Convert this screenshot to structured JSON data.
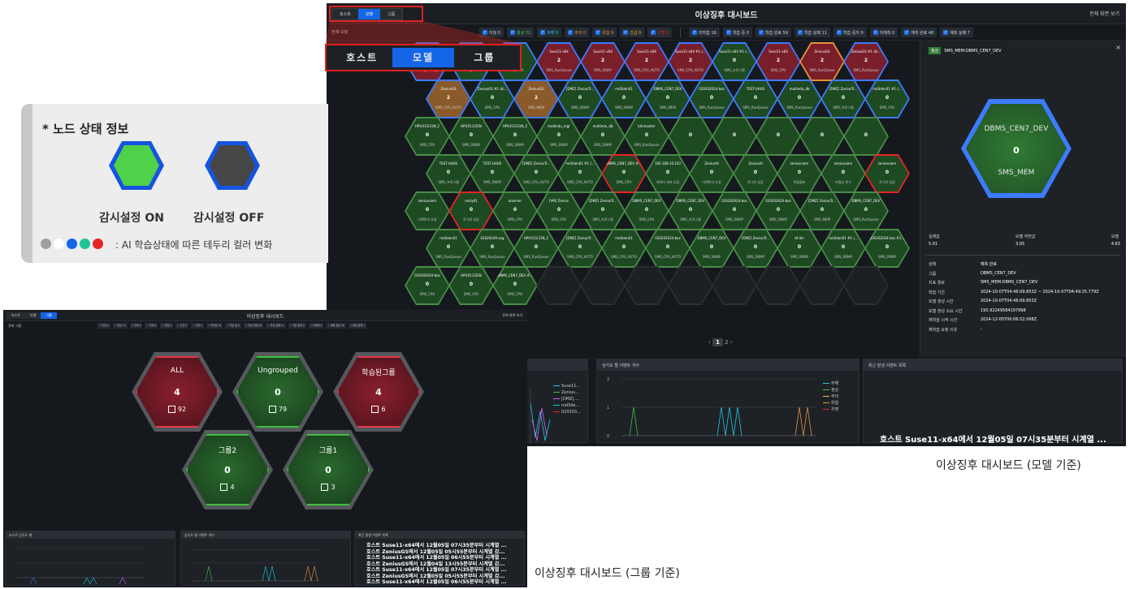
{
  "legend": {
    "title": "* 노드 상태 정보",
    "on_label": "감시설정 ON",
    "off_label": "감시설정 OFF",
    "note": ": AI 학습상태에 따른 테두리 컬러 변화",
    "dot_colors": [
      "#a0a0a0",
      "#ffffff",
      "#1565e8",
      "#1fc39a",
      "#e52424"
    ]
  },
  "model_dashboard": {
    "title": "이상징후 대시보드",
    "fullview": "전체 화면 보기",
    "tabs": [
      "호스트",
      "모델",
      "그룹"
    ],
    "filter_label": "전체 모델",
    "chips": [
      "미정 0",
      "정상 72",
      "무해 0",
      "주의 0",
      "위험 9",
      "긴급 0",
      "치명 9"
    ],
    "chips2": [
      "미학습 16",
      "학습 중 0",
      "학습 완료 59",
      "학습 실패 11",
      "학습 중지 0",
      "미예측 0",
      "예측 완료 48",
      "예측 실패 7"
    ],
    "pager": {
      "current": "1",
      "next": "2"
    },
    "detail": {
      "badge": "정상",
      "name": "SMS_MEM:DBMS_CEN7_DEV",
      "hex_top": "DBMS_CEN7_DEV",
      "hex_value": "0",
      "hex_bottom": "SMS_MEM",
      "metrics": [
        {
          "k": "실제값",
          "v": "5.01"
        },
        {
          "k": "모델 하한값",
          "v": "3.05"
        },
        {
          "k": "모델",
          "v": "4.63"
        }
      ],
      "rows": [
        {
          "k": "상태",
          "v": "예측 완료"
        },
        {
          "k": "그룹",
          "v": "DBMS_CEN7_DEV"
        },
        {
          "k": "지표 경로",
          "v": "SMS_MEM:DBMS_CEN7_DEV"
        },
        {
          "k": "학습 기간",
          "v": "2024-10-07T04:46:09.853Z ~ 2024-10-07T04:49:25.779Z"
        },
        {
          "k": "모델 생성 시간",
          "v": "2024-10-07T04:46:09.853Z"
        },
        {
          "k": "모델 생성 소요 시간",
          "v": "195.92249584197998"
        },
        {
          "k": "재학습 시작 시간",
          "v": "2024-12-05T00:06:52.068Z"
        },
        {
          "k": "재학습 요청 이유",
          "v": "-"
        }
      ]
    },
    "panels": {
      "p2_title": "심각도 별 이벤트 개수",
      "p3_title": "최근 발생 이벤트 목록",
      "p1_legend": [
        "Suse11...",
        "Zenius...",
        "[DMZ] ...",
        "md3de...",
        "020203..."
      ],
      "p2_legend": [
        "무해",
        "정상",
        "주의",
        "위험",
        "치명"
      ],
      "p2_y": [
        "2",
        "1",
        "0"
      ],
      "event": "호스트 Suse11-x64에서 12월05일 07시35분부터 시계열 ..."
    },
    "hexes": [
      [
        "2|SMS_프로그램|",
        "0|SMS_CPU|",
        "0|SMS_MEM|",
        "2|SMS_RunQueue|Suse11-x64",
        "2|SMS_SWAP|Suse11-x64",
        "2|SMS_CPU_AUTO|Suse11-x64",
        "2|SMS_CPU_AUTO|Suse11-x64 #1 (...",
        "0|SMS_프로그램|Suse11-x64 #1 (...",
        "2|SMS_CPU|Suse11-x64",
        "2|SMS_RunQueue|ZeniusGS",
        "2|SMS_RunQueue|ZeniusGS #1 (bi...",
        "2||Suse11-x64"
      ],
      [
        "2|SMS_CPU_AUTO|ZeniusGS",
        "0|SMS_CPU|ZeniusGS #1 (bi...",
        "2|SMS_MEM|ZeniusGS",
        "0|SMS_SWAP|[DMZ] ZeniusTr...",
        "0|SMS_SWAP|md3den01",
        "0|SMS_MEM|DBMS_CEN7_DEV",
        "0|SMS_RunQueue|020202024-bos",
        "0|SMS_RunQueue|TEST-UHUS",
        "0|SMS_RunQueue|multiedu_db",
        "0|SMS_프로그램|[DMZ] ZeniusTr...",
        "0|SMS_CPU|md3den01 #1 (...",
        "0||"
      ],
      [
        "0|SMS_CPU|HPUX11I31N_2",
        "0|SMS_SWAP|HPUX11I31N",
        "0|SMS_SWAP|HPUX11I31N_2",
        "0|SMS_SWAP|multiedu_mgr",
        "0|SMS_SWAP|multiedu_db",
        "0|SMS_RunQueue|bitcmaster",
        "0||",
        "0||",
        "0||",
        "0||",
        "0||",
        "0||"
      ],
      [
        "0|SMS_프로그램|TEST-UHUS",
        "0|SMS_SWAP|TEST-UHUS",
        "0|SMS_CPU_AUTO|[DMZ] ZeniusTr...",
        "0|SMS_CPU_AUTO|md3den01 #1 (...",
        "0|SMS_CPU|DBMS_CEN7_DEV #...",
        "0|데이터 처리 오류|192.168.10.243",
        "0|디렉토리 오류|ZeniusAI",
        "0|로그인 성공|ZeniusAI",
        "0|런칭중표|zeniussiem",
        "0|비정상 로그|zeniussiem",
        "0|로그인 성공|zeniussiem",
        "0|로그인 성공|zeniussiem"
      ],
      [
        "0|디렉토리 오류|zeniussiem",
        "0|로그인 성공|rocky91",
        "0|SMS_CPU|aiserver",
        "0|SMS_CPU|[VM] Zenius",
        "0|SMS_프로그램|[DMZ] ZeniusTr...",
        "0|SMS_CPU|DBMS_CEN7_DEV",
        "0|SMS_프로그램|DBMS_CEN7_DEV",
        "0|SMS_SWAP|020202024-bos",
        "0|SMS_SWAP|020202024-bos",
        "0|SMS_MEM|[DMZ] ZeniusTr...",
        "0|SMS_RunQueue|DBMS_CEN7_DEV",
        "0|SMS_CPU|DBMS_CEN7_DEV #..."
      ],
      [
        "0|SMS_RunQueue|md3den01",
        "0|SMS_RunQueue|02020249-osg",
        "0|SMS_RunQueue|HPUX11I31N_2",
        "0|SMS_CPU_AUTO|[DMZ] ZeniusTr...",
        "0|SMS_CPU_AUTO|md3den01",
        "0|SMS_CPU_AUTO|020202024-bos",
        "0|SMS_SWAP|DBMS_CEN7_DEV",
        "0|SMS_SWAP|[DMZ] ZeniusTr...",
        "0|SMS_SWAP|dt-ilm",
        "0|SMS_SWAP|md3den01 #1 (...",
        "0|SMS_SWAP|020202024-bos #1...",
        "0||"
      ],
      [
        "0|SMS_CPU|020202024-bos",
        "0|SMS_CPU|HPUX11I31N",
        "0|SMS_CPU|DBMS_CEN7_DEV #...",
        "||",
        "||",
        "||",
        "||",
        "||",
        "||",
        "||",
        "||",
        "||"
      ]
    ]
  },
  "group_dashboard": {
    "title": "이상징후 대시보드",
    "fullview": "전체 화면 보기",
    "tabs": [
      "호스트",
      "모델",
      "그룹"
    ],
    "filter_label": "전체 그룹",
    "groups": [
      {
        "name": "ALL",
        "count": "4",
        "nodes": "92",
        "state": "red"
      },
      {
        "name": "Ungrouped",
        "count": "0",
        "nodes": "79",
        "state": "green"
      },
      {
        "name": "학습된그룹",
        "count": "4",
        "nodes": "6",
        "state": "red"
      },
      {
        "name": "그룹2",
        "count": "0",
        "nodes": "4",
        "state": "green"
      },
      {
        "name": "그룹1",
        "count": "0",
        "nodes": "3",
        "state": "green"
      }
    ],
    "panels": {
      "p1_title": "호스트 심각도 별",
      "p2_title": "심각도 별 이벤트 개수",
      "p3_title": "최근 발생 이벤트 목록"
    },
    "events": [
      "호스트 Suse11-x64에서 12월05일 07시35분부터 시계열 ...",
      "호스트 ZeniusGS에서 12월05일 05시55분부터 시계열 감...",
      "호스트 Suse11-x64에서 12월05일 06시55분부터 시계열 ...",
      "호스트 ZeniusGS에서 12월04일 13시55분부터 시계열 감...",
      "호스트 Suse11-x64에서 12월05일 07시35분부터 시계열 ...",
      "호스트 ZeniusGS에서 12월05일 05시55분부터 시계열 감...",
      "호스트 Suse11-x64에서 12월05일 06시55분부터 시계열 ..."
    ]
  },
  "captions": {
    "model": "이상징후 대시보드 (모델 기준)",
    "group": "이상징후 대시보드 (그룹 기준)"
  }
}
